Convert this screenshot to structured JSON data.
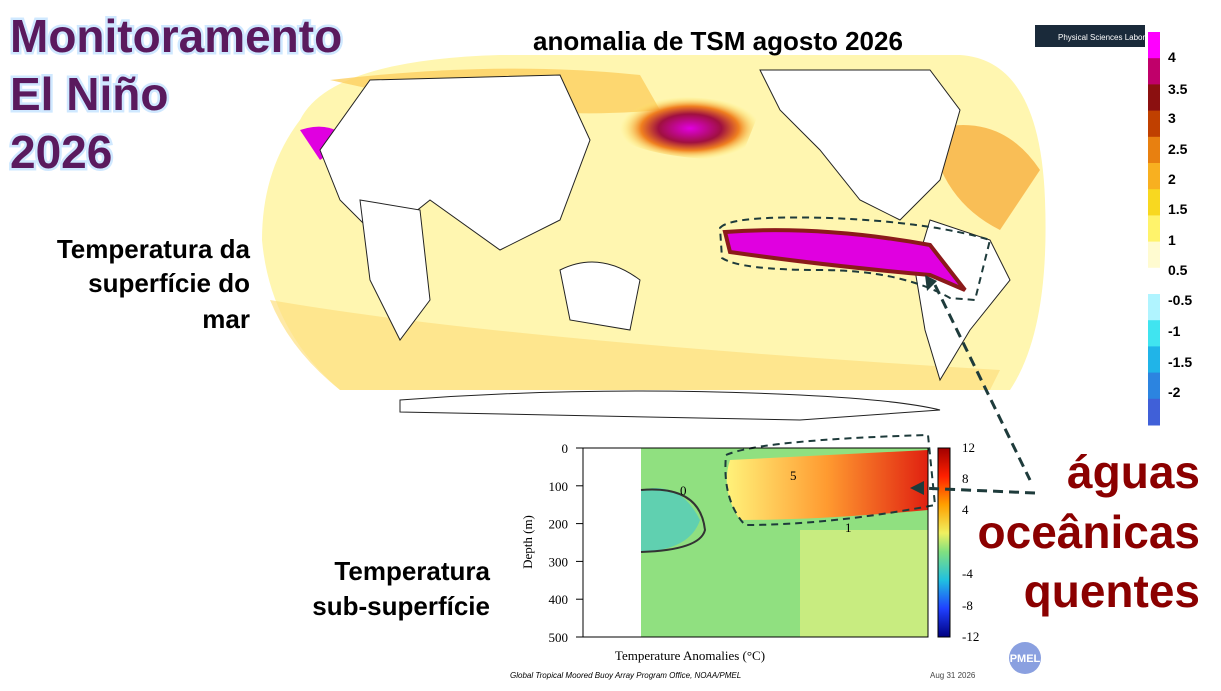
{
  "header": {
    "title_lines": [
      "Monitoramento",
      "El Niño",
      "2026"
    ]
  },
  "map": {
    "title": "anomalia de TSM agosto 2026",
    "logo": "Physical Sciences Laboratory",
    "colorbar_labels": [
      "4",
      "3.5",
      "3",
      "2.5",
      "2",
      "1.5",
      "1",
      "0.5",
      "-0.5",
      "-1",
      "-1.5",
      "-2"
    ]
  },
  "labels": {
    "surface": [
      "Temperatura da",
      "superfície do",
      "mar"
    ],
    "subsurface": [
      "Temperatura",
      "sub-superfície"
    ],
    "callout": [
      "águas",
      "oceânicas",
      "quentes"
    ]
  },
  "section": {
    "y_axis_label": "Depth (m)",
    "y_ticks": [
      "0",
      "100",
      "200",
      "300",
      "400",
      "500"
    ],
    "x_axis_label": "Temperature Anomalies (°C)",
    "colorbar_labels": [
      "12",
      "8",
      "4",
      "-4",
      "-8",
      "-12"
    ],
    "contour_labels": [
      "0",
      "5",
      "1"
    ],
    "credit": "Global Tropical Moored Buoy Array Program Office, NOAA/PMEL",
    "date": "Aug 31 2026",
    "logo": "PMEL"
  }
}
